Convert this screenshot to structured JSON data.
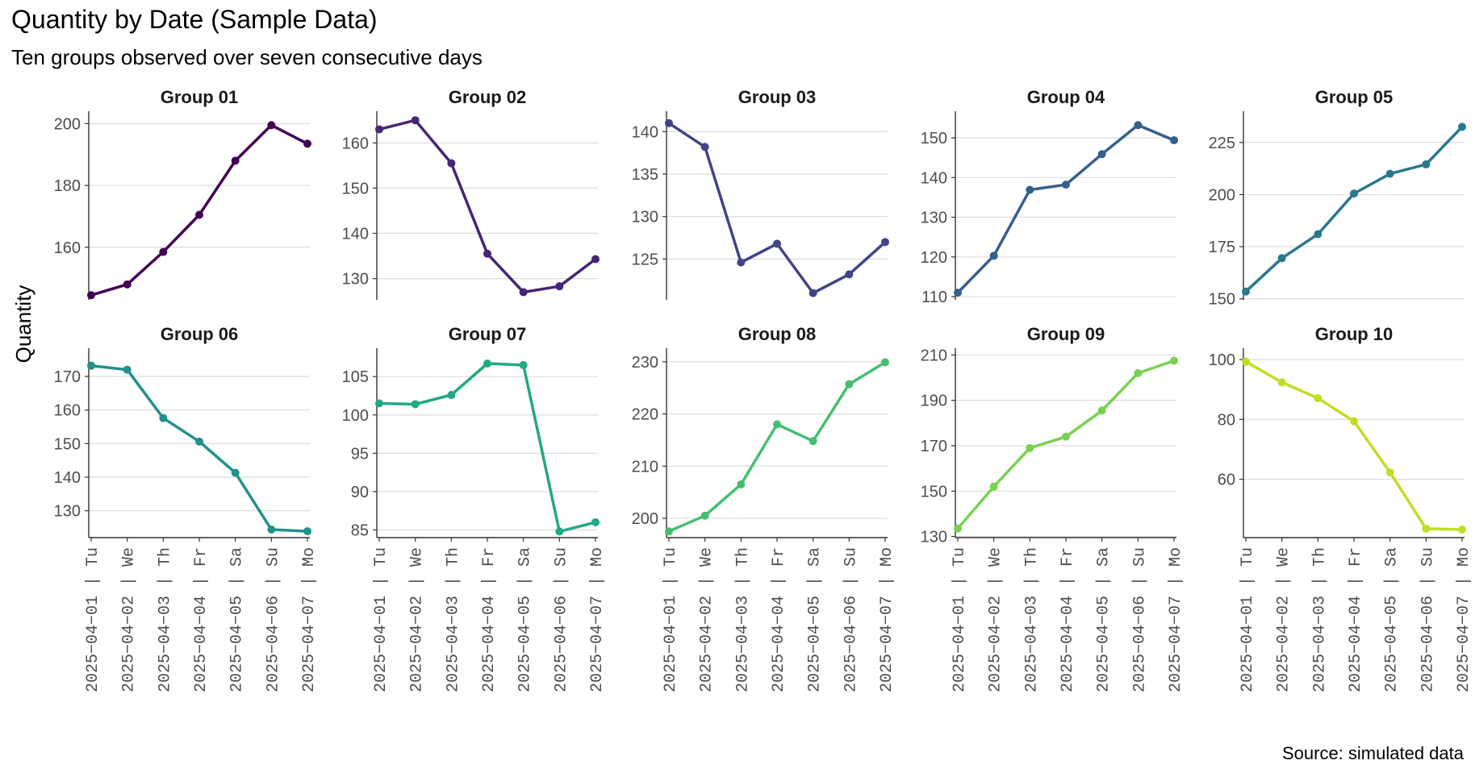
{
  "title": "Quantity by Date (Sample Data)",
  "subtitle": "Ten groups observed over seven consecutive days",
  "caption": "Source: simulated data",
  "chart_data": {
    "type": "line",
    "facet_layout": "5 columns x 2 rows, free y scales",
    "ylabel": "Quantity",
    "xlabel": "",
    "x": [
      "2025-04-01",
      "2025-04-02",
      "2025-04-03",
      "2025-04-04",
      "2025-04-05",
      "2025-04-06",
      "2025-04-07"
    ],
    "x_labels_line1": [
      "2025−04−01",
      "2025−04−02",
      "2025−04−03",
      "2025−04−04",
      "2025−04−05",
      "2025−04−06",
      "2025−04−07"
    ],
    "x_labels_line2": [
      "Tu",
      "We",
      "Th",
      "Fr",
      "Sa",
      "Su",
      "Mo"
    ],
    "x_label_separator": "|",
    "grid": "horizontal major gridlines only",
    "legend": "none",
    "series": [
      {
        "name": "Group 01",
        "color": "#440154",
        "values": [
          144.5,
          148,
          158.5,
          170.5,
          188,
          199.5,
          193.5
        ],
        "yticks": [
          160,
          180,
          200
        ],
        "ylim": [
          143,
          204
        ]
      },
      {
        "name": "Group 02",
        "color": "#482475",
        "values": [
          163,
          165,
          155.5,
          135.5,
          127,
          128.3,
          134.3
        ],
        "yticks": [
          130,
          140,
          150,
          160
        ],
        "ylim": [
          125.3,
          167
        ]
      },
      {
        "name": "Group 03",
        "color": "#414487",
        "values": [
          141,
          138.2,
          124.6,
          126.8,
          121,
          123.2,
          127
        ],
        "yticks": [
          125,
          130,
          135,
          140
        ],
        "ylim": [
          120.2,
          142.4
        ]
      },
      {
        "name": "Group 04",
        "color": "#355f8d",
        "values": [
          111,
          120.3,
          136.9,
          138.2,
          145.9,
          153.2,
          149.4
        ],
        "yticks": [
          110,
          120,
          130,
          140,
          150
        ],
        "ylim": [
          109.2,
          156.7
        ]
      },
      {
        "name": "Group 05",
        "color": "#2a788e",
        "values": [
          153.5,
          169.5,
          181,
          200.5,
          210,
          214.5,
          232.5
        ],
        "yticks": [
          150,
          175,
          200,
          225
        ],
        "ylim": [
          149.5,
          240
        ]
      },
      {
        "name": "Group 06",
        "color": "#21918c",
        "values": [
          173.2,
          172,
          157.6,
          150.6,
          141.3,
          124.4,
          123.9
        ],
        "yticks": [
          130,
          140,
          150,
          160,
          170
        ],
        "ylim": [
          122,
          178.4
        ]
      },
      {
        "name": "Group 07",
        "color": "#22a884",
        "values": [
          101.5,
          101.4,
          102.6,
          106.7,
          106.5,
          84.8,
          86
        ],
        "yticks": [
          85,
          90,
          95,
          100,
          105
        ],
        "ylim": [
          84,
          108.7
        ]
      },
      {
        "name": "Group 08",
        "color": "#44bf70",
        "values": [
          197.5,
          200.5,
          206.5,
          218,
          214.8,
          225.7,
          229.9
        ],
        "yticks": [
          200,
          210,
          220,
          230
        ],
        "ylim": [
          196.3,
          232.6
        ]
      },
      {
        "name": "Group 09",
        "color": "#7ad151",
        "values": [
          133.5,
          152,
          169,
          174,
          185.5,
          202,
          207.5
        ],
        "yticks": [
          130,
          150,
          170,
          190,
          210
        ],
        "ylim": [
          129.5,
          213
        ]
      },
      {
        "name": "Group 10",
        "color": "#bddf26",
        "values": [
          99.3,
          92.4,
          87.1,
          79.4,
          62.3,
          43.5,
          43.2
        ],
        "yticks": [
          60,
          80,
          100
        ],
        "ylim": [
          40.5,
          103.8
        ]
      }
    ]
  }
}
